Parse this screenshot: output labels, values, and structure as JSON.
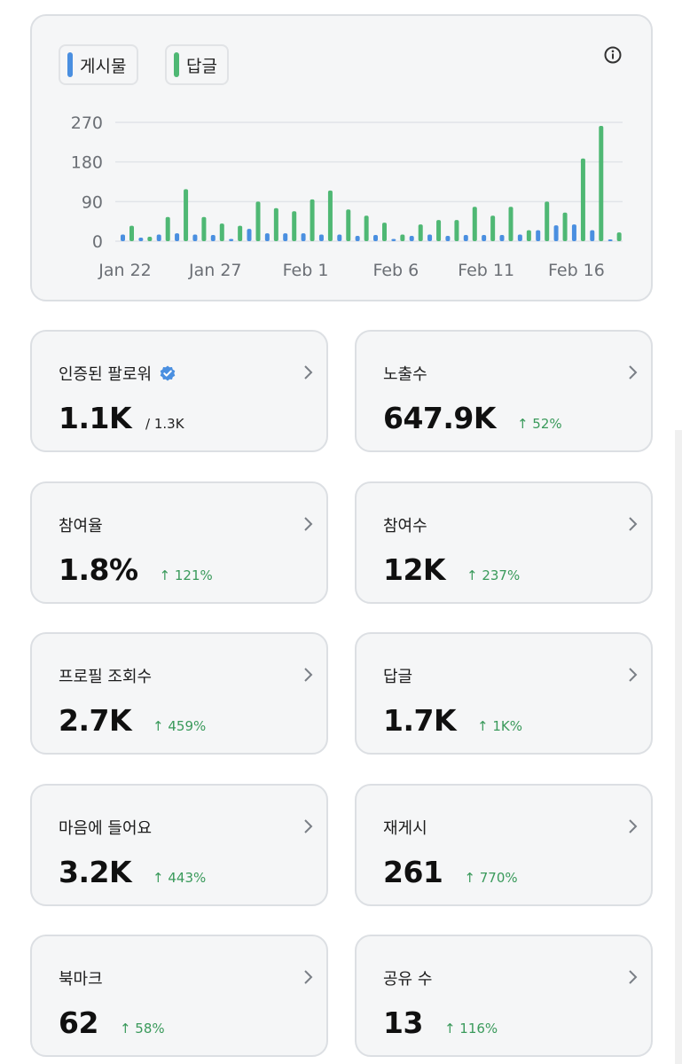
{
  "legend": {
    "posts_label": "게시물",
    "replies_label": "답글",
    "posts_color": "#4a8fe0",
    "replies_color": "#4fb874"
  },
  "icons": {
    "info": "info-icon",
    "chevron": "chevron-right-icon",
    "verified": "verified-badge-icon"
  },
  "chart_data": {
    "type": "bar",
    "x_tick_labels": [
      "Jan 22",
      "Jan 27",
      "Feb 1",
      "Feb 6",
      "Feb 11",
      "Feb 16"
    ],
    "y_tick_labels": [
      "270",
      "180",
      "90",
      "0"
    ],
    "ylim": [
      0,
      270
    ],
    "categories": [
      "Jan 22",
      "Jan 23",
      "Jan 24",
      "Jan 25",
      "Jan 26",
      "Jan 27",
      "Jan 28",
      "Jan 29",
      "Jan 30",
      "Jan 31",
      "Feb 1",
      "Feb 2",
      "Feb 3",
      "Feb 4",
      "Feb 5",
      "Feb 6",
      "Feb 7",
      "Feb 8",
      "Feb 9",
      "Feb 10",
      "Feb 11",
      "Feb 12",
      "Feb 13",
      "Feb 14",
      "Feb 15",
      "Feb 16",
      "Feb 17",
      "Feb 18"
    ],
    "series": [
      {
        "name": "게시물",
        "color": "#4a8fe0",
        "values": [
          15,
          8,
          15,
          18,
          15,
          14,
          5,
          28,
          18,
          18,
          18,
          15,
          15,
          12,
          14,
          5,
          12,
          15,
          12,
          14,
          14,
          14,
          15,
          25,
          36,
          38,
          25,
          2
        ]
      },
      {
        "name": "답글",
        "color": "#4fb874",
        "values": [
          35,
          10,
          55,
          118,
          55,
          40,
          35,
          90,
          75,
          68,
          95,
          115,
          72,
          58,
          42,
          15,
          38,
          48,
          48,
          78,
          58,
          78,
          25,
          90,
          65,
          188,
          262,
          20
        ]
      }
    ],
    "grid": true
  },
  "stats": [
    {
      "title": "인증된 팔로워",
      "value": "1.1K",
      "sub": "/ 1.3K",
      "delta": "",
      "verified": true
    },
    {
      "title": "노출수",
      "value": "647.9K",
      "sub": "",
      "delta": "↑ 52%"
    },
    {
      "title": "참여율",
      "value": "1.8%",
      "sub": "",
      "delta": "↑ 121%"
    },
    {
      "title": "참여수",
      "value": "12K",
      "sub": "",
      "delta": "↑ 237%"
    },
    {
      "title": "프로필 조회수",
      "value": "2.7K",
      "sub": "",
      "delta": "↑ 459%"
    },
    {
      "title": "답글",
      "value": "1.7K",
      "sub": "",
      "delta": "↑ 1K%"
    },
    {
      "title": "마음에 들어요",
      "value": "3.2K",
      "sub": "",
      "delta": "↑ 443%"
    },
    {
      "title": "재게시",
      "value": "261",
      "sub": "",
      "delta": "↑ 770%"
    },
    {
      "title": "북마크",
      "value": "62",
      "sub": "",
      "delta": "↑ 58%"
    },
    {
      "title": "공유 수",
      "value": "13",
      "sub": "",
      "delta": "↑ 116%"
    }
  ]
}
